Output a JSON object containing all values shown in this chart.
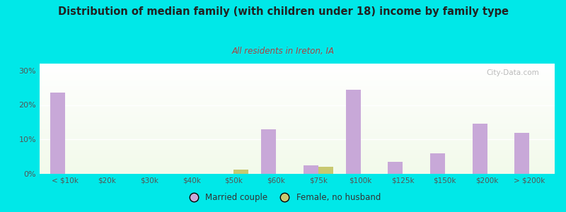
{
  "title": "Distribution of median family (with children under 18) income by family type",
  "subtitle": "All residents in Ireton, IA",
  "categories": [
    "< $10k",
    "$20k",
    "$30k",
    "$40k",
    "$50k",
    "$60k",
    "$75k",
    "$100k",
    "$125k",
    "$150k",
    "$200k",
    "> $200k"
  ],
  "married_couple": [
    23.5,
    0,
    0,
    0,
    0,
    13.0,
    2.5,
    24.5,
    3.5,
    6.0,
    14.5,
    12.0
  ],
  "female_no_husband": [
    0,
    0,
    0,
    0,
    1.2,
    0,
    2.0,
    0,
    0,
    0,
    0,
    0
  ],
  "bar_color_married": "#c8a8d8",
  "bar_color_female": "#c8c870",
  "background_outer": "#00e8e8",
  "ylim": [
    0,
    32
  ],
  "yticks": [
    0,
    10,
    20,
    30
  ],
  "ytick_labels": [
    "0%",
    "10%",
    "20%",
    "30%"
  ],
  "watermark": "City-Data.com",
  "legend_married": "Married couple",
  "legend_female": "Female, no husband",
  "title_color": "#222222",
  "subtitle_color": "#aa4444",
  "tick_color": "#555555",
  "bar_width": 0.35
}
